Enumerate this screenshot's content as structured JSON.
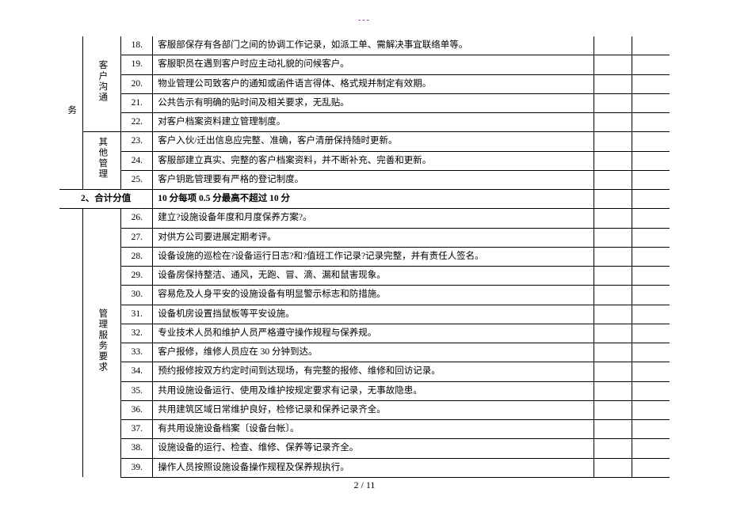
{
  "header_mark": "---",
  "section1": {
    "cat1": "务",
    "groups": [
      {
        "label": "客户沟通",
        "rows": [
          {
            "num": "18.",
            "desc": "客服部保存有各部门之间的协调工作记录，如派工单、需解决事宜联络单等。"
          },
          {
            "num": "19.",
            "desc": "客服职员在遇到客户时应主动礼貌的问候客户。"
          },
          {
            "num": "20.",
            "desc": "物业管理公司致客户的通知或函件语言得体、格式规并制定有效期。"
          },
          {
            "num": "21.",
            "desc": "公共告示有明确的贴时间及相关要求，无乱贴。"
          },
          {
            "num": "22.",
            "desc": "对客户档案资料建立管理制度。"
          }
        ]
      },
      {
        "label": "其他管理",
        "rows": [
          {
            "num": "23.",
            "desc": "客户入伙/迁出信息应完整、准确，客户清册保持随时更新。"
          },
          {
            "num": "24.",
            "desc": "客服部建立真实、完整的客户档案资料，并不断补充、完善和更新。"
          },
          {
            "num": "25.",
            "desc": "客户钥匙管理要有严格的登记制度。"
          }
        ]
      }
    ]
  },
  "subtotal": {
    "label": "2、合计分值",
    "value": "10 分每项 0.5 分最高不超过 10 分"
  },
  "section2": {
    "cat1": "",
    "groups": [
      {
        "label": "管理服务要求",
        "rows": [
          {
            "num": "26.",
            "desc": "建立?设施设备年度和月度保养方案?。"
          },
          {
            "num": "27.",
            "desc": "对供方公司要进展定期考评。"
          },
          {
            "num": "28.",
            "desc": "设备设施的巡检在?设备运行日志?和?值班工作记录?记录完整，并有责任人签名。"
          },
          {
            "num": "29.",
            "desc": "设备房保持整洁、通风，无跑、冒、滴、漏和鼠害现象。"
          },
          {
            "num": "30.",
            "desc": "容易危及人身平安的设施设备有明显警示标志和防措施。"
          },
          {
            "num": "31.",
            "desc": "设备机房设置挡鼠板等平安设施。"
          },
          {
            "num": "32.",
            "desc": "专业技术人员和维护人员严格遵守操作规程与保养规。"
          },
          {
            "num": "33.",
            "desc": "客户报修，维修人员应在 30 分钟到达。"
          },
          {
            "num": "34.",
            "desc": "预约报修按双方约定时间到达现场，有完整的报修、维修和回访记录。"
          },
          {
            "num": "35.",
            "desc": "共用设施设备运行、使用及维护按规定要求有记录，无事故隐患。"
          },
          {
            "num": "36.",
            "desc": "共用建筑区域日常维护良好，检修记录和保养记录齐全。"
          },
          {
            "num": "37.",
            "desc": "有共用设施设备档案〔设备台帐〕。"
          },
          {
            "num": "38.",
            "desc": "设施设备的运行、检查、维修、保养等记录齐全。"
          },
          {
            "num": "39.",
            "desc": "操作人员按照设施设备操作规程及保养规执行。"
          }
        ]
      }
    ]
  },
  "footer": "2 / 11"
}
